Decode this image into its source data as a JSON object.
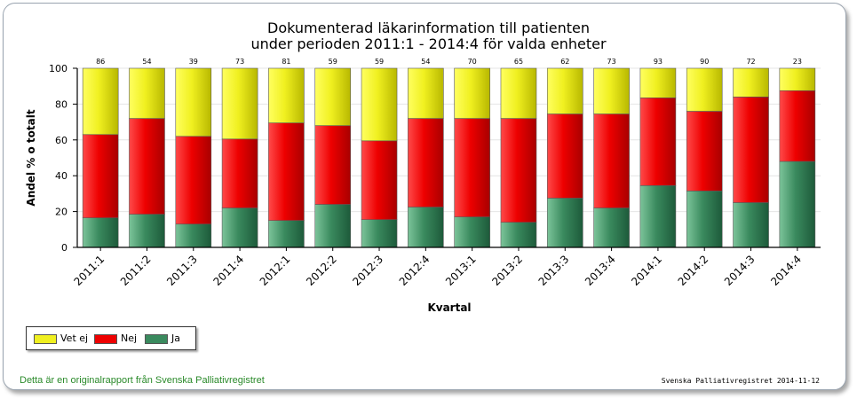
{
  "chart_data": {
    "type": "bar",
    "stacked": true,
    "title_line1": "Dokumenterad läkarinformation till patienten",
    "title_line2": "under perioden 2011:1 - 2014:4 för valda enheter",
    "xlabel": "Kvartal",
    "ylabel": "Andel % o totalt",
    "ylim": [
      0,
      100
    ],
    "yticks": [
      "0",
      "20",
      "40",
      "60",
      "80",
      "100"
    ],
    "grid": true,
    "legend_position": "bottom-left",
    "categories": [
      "2011:1",
      "2011:2",
      "2011:3",
      "2011:4",
      "2012:1",
      "2012:2",
      "2012:3",
      "2012:4",
      "2013:1",
      "2013:2",
      "2013:3",
      "2013:4",
      "2014:1",
      "2014:2",
      "2014:3",
      "2014:4"
    ],
    "counts": [
      "86",
      "54",
      "39",
      "73",
      "81",
      "59",
      "59",
      "54",
      "70",
      "65",
      "62",
      "73",
      "93",
      "90",
      "72",
      "23"
    ],
    "series": [
      {
        "name": "Ja",
        "color": "#3a8a5e",
        "values": [
          16.5,
          18.5,
          13,
          22,
          15,
          24,
          15.5,
          22.5,
          17,
          14,
          27.5,
          22,
          34.5,
          31.5,
          25,
          48
        ]
      },
      {
        "name": "Nej",
        "color": "#ee0000",
        "values": [
          46.5,
          53.5,
          49,
          38.5,
          54.5,
          44,
          44,
          49.5,
          55,
          58,
          47,
          52.5,
          49,
          44.5,
          59,
          39.5
        ]
      },
      {
        "name": "Vet ej",
        "color": "#f0f020",
        "values": [
          37,
          28,
          38,
          39.5,
          30.5,
          32,
          40.5,
          28,
          28,
          28,
          25.5,
          25.5,
          16.5,
          24,
          16,
          12.5
        ]
      }
    ]
  },
  "legend": {
    "items": [
      {
        "label": "Vet ej",
        "color": "#f0f020"
      },
      {
        "label": "Nej",
        "color": "#ee0000"
      },
      {
        "label": "Ja",
        "color": "#3a8a5e"
      }
    ]
  },
  "footer": {
    "left": "Detta är en originalrapport från Svenska Palliativregistret",
    "right": "Svenska Palliativregistret 2014-11-12"
  }
}
